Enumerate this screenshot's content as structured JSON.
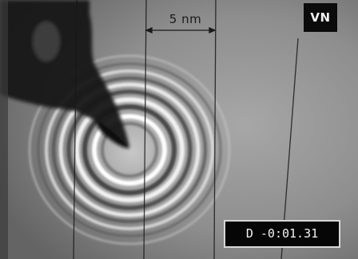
{
  "overlay": {
    "channel_badge": "VN",
    "scale_label": "5 nm",
    "timecode": "D -0:01.31"
  },
  "colors": {
    "frame_background": "#8c8c8c",
    "ring_light": "#f4f4f4",
    "ring_dark": "#303030",
    "badge_background": "#0b0b0b",
    "timecode_background": "#060606"
  },
  "depicted_objects": [
    "vertical-guide-lines",
    "dark-probe-tip",
    "bright-interference-rings"
  ]
}
